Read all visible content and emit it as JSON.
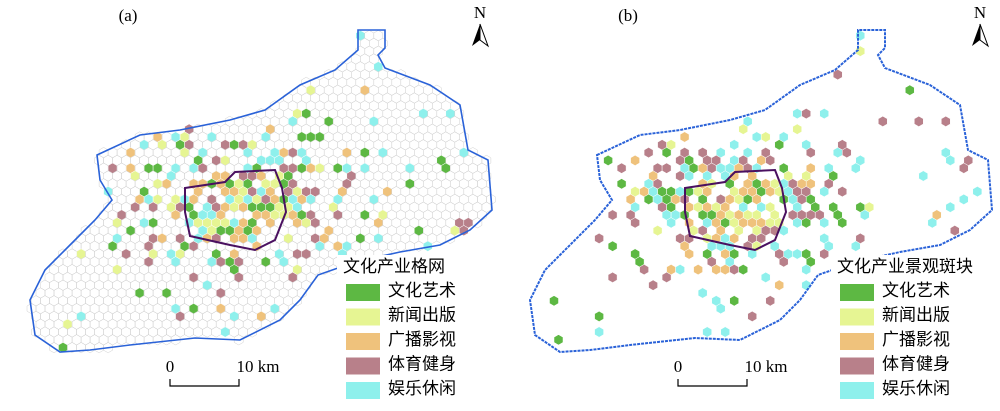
{
  "panels": [
    {
      "label": "(a)",
      "north": "N",
      "legend": {
        "title": "文化产业格网",
        "items": [
          {
            "label": "文化艺术",
            "color": "#5db843"
          },
          {
            "label": "新闻出版",
            "color": "#e6f593"
          },
          {
            "label": "广播影视",
            "color": "#efc27c"
          },
          {
            "label": "体育健身",
            "color": "#b8808a"
          },
          {
            "label": "娱乐休闲",
            "color": "#8ef0ec"
          }
        ]
      },
      "scale": {
        "start": "0",
        "end": "10 km"
      }
    },
    {
      "label": "(b)",
      "north": "N",
      "legend": {
        "title": "文化产业景观斑块",
        "items": [
          {
            "label": "文化艺术",
            "color": "#5db843"
          },
          {
            "label": "新闻出版",
            "color": "#e6f593"
          },
          {
            "label": "广播影视",
            "color": "#efc27c"
          },
          {
            "label": "体育健身",
            "color": "#b8808a"
          },
          {
            "label": "娱乐休闲",
            "color": "#8ef0ec"
          }
        ]
      },
      "scale": {
        "start": "0",
        "end": "10 km"
      }
    }
  ]
}
